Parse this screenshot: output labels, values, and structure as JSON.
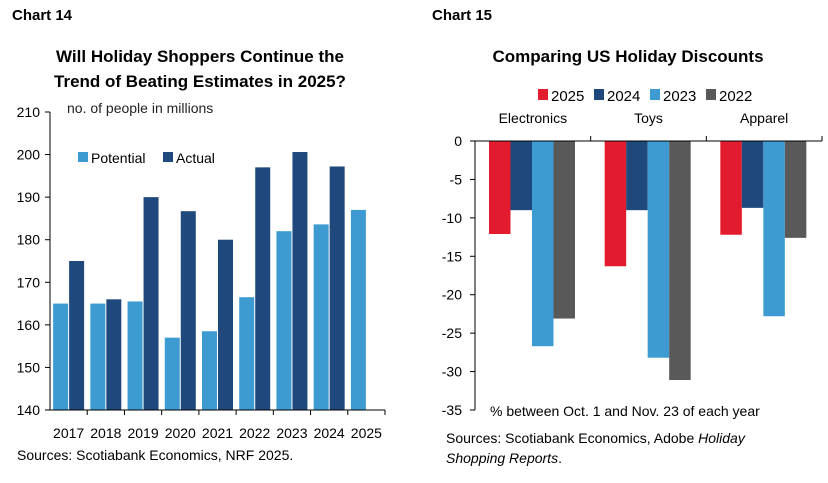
{
  "colors": {
    "potential": "#3d9bd1",
    "actual": "#1f497d",
    "y2025": "#e31b2e",
    "y2024": "#1f497d",
    "y2023": "#3d9bd1",
    "y2022": "#595959"
  },
  "chart_data": [
    {
      "type": "bar",
      "label": "Chart 14",
      "title": [
        "Will Holiday Shoppers Continue the",
        "Trend of Beating Estimates in 2025?"
      ],
      "ylabel": "no. of people in millions",
      "ylim": [
        140,
        210
      ],
      "yticks": [
        140,
        150,
        160,
        170,
        180,
        190,
        200,
        210
      ],
      "categories": [
        "2017",
        "2018",
        "2019",
        "2020",
        "2021",
        "2022",
        "2023",
        "2024",
        "2025"
      ],
      "series": [
        {
          "name": "Potential",
          "values": [
            165,
            165,
            165.5,
            157,
            158.5,
            166.5,
            182,
            183.6,
            187
          ]
        },
        {
          "name": "Actual",
          "values": [
            175,
            166,
            190,
            186.7,
            180,
            197,
            200.6,
            197.2,
            null
          ]
        }
      ],
      "source": "Sources: Scotiabank Economics, NRF 2025."
    },
    {
      "type": "bar",
      "label": "Chart 15",
      "title": [
        "Comparing US Holiday Discounts"
      ],
      "ylim": [
        -35,
        0
      ],
      "yticks": [
        0,
        -5,
        -10,
        -15,
        -20,
        -25,
        -30,
        -35
      ],
      "categories": [
        "Electronics",
        "Toys",
        "Apparel"
      ],
      "series": [
        {
          "name": "2025",
          "values": [
            -12.1,
            -16.3,
            -12.2
          ]
        },
        {
          "name": "2024",
          "values": [
            -9,
            -9,
            -8.7
          ]
        },
        {
          "name": "2023",
          "values": [
            -26.7,
            -28.2,
            -22.8
          ]
        },
        {
          "name": "2022",
          "values": [
            -23.1,
            -31.1,
            -12.6
          ]
        }
      ],
      "note": "% between Oct. 1 and Nov. 23 of each year",
      "source": [
        "Sources: Scotiabank Economics, Adobe ",
        "Holiday",
        "Shopping Reports",
        "."
      ]
    }
  ]
}
